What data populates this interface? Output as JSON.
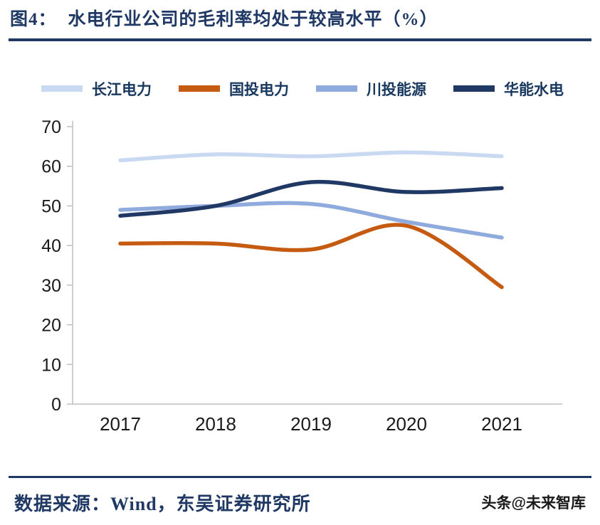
{
  "header": {
    "prefix": "图4：",
    "title": "水电行业公司的毛利率均处于较高水平（%）"
  },
  "footer": {
    "source": "数据来源：Wind，东吴证券研究所",
    "watermark": "头条@未来智库"
  },
  "colors": {
    "accent_navy": "#1F3864",
    "axis_gray": "#BFBFBF",
    "tick_text": "#1a1a1a"
  },
  "chart_data": {
    "type": "line",
    "title": "水电行业公司的毛利率均处于较高水平（%）",
    "x": [
      "2017",
      "2018",
      "2019",
      "2020",
      "2021"
    ],
    "series": [
      {
        "name": "长江电力",
        "color": "#C9D9F1",
        "values": [
          61.5,
          63.0,
          62.5,
          63.5,
          62.5
        ]
      },
      {
        "name": "国投电力",
        "color": "#C55A11",
        "values": [
          40.5,
          40.5,
          39.0,
          45.0,
          29.5
        ]
      },
      {
        "name": "川投能源",
        "color": "#8FAADC",
        "values": [
          49.0,
          50.0,
          50.5,
          46.0,
          42.0
        ]
      },
      {
        "name": "华能水电",
        "color": "#1F3864",
        "values": [
          47.5,
          50.0,
          56.0,
          53.5,
          54.5
        ]
      }
    ],
    "xlabel": "",
    "ylabel": "",
    "ylim": [
      0,
      70
    ],
    "yticks": [
      0,
      10,
      20,
      30,
      40,
      50,
      60,
      70
    ],
    "legend_position": "top",
    "grid": false
  }
}
